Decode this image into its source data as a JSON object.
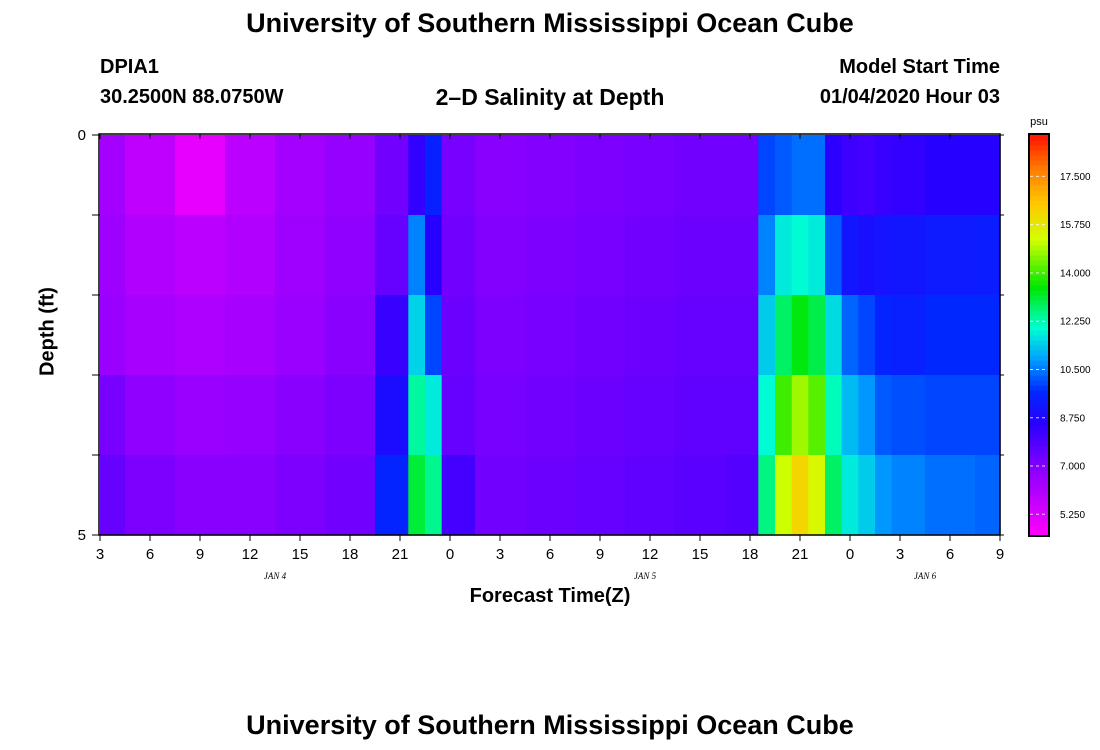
{
  "page": {
    "title_top": "University of Southern Mississippi Ocean Cube",
    "title_bottom": "University of Southern Mississippi Ocean Cube",
    "station_id": "DPIA1",
    "station_coords": "30.2500N 88.0750W",
    "plot_title": "2–D Salinity at Depth",
    "model_start_label": "Model Start Time",
    "model_start_value": "01/04/2020 Hour 03"
  },
  "chart_data": {
    "type": "heatmap",
    "title": "2–D Salinity at Depth",
    "xlabel": "Forecast Time(Z)",
    "ylabel": "Depth (ft)",
    "x_tick_labels": [
      "3",
      "6",
      "9",
      "12",
      "15",
      "18",
      "21",
      "0",
      "3",
      "6",
      "9",
      "12",
      "15",
      "18",
      "21",
      "0",
      "3",
      "6",
      "9"
    ],
    "date_labels": [
      {
        "text": "JAN 4",
        "tick_index": 3.5
      },
      {
        "text": "JAN 5",
        "tick_index": 10.9
      },
      {
        "text": "JAN 6",
        "tick_index": 16.5
      }
    ],
    "y_tick_labels": [
      "0",
      "5"
    ],
    "ylim": [
      0,
      5
    ],
    "depths_ft": [
      0.5,
      1.5,
      2.5,
      3.5,
      4.5
    ],
    "hours_from_start": [
      0,
      3,
      6,
      9,
      12,
      15,
      18,
      19,
      20,
      21,
      24,
      27,
      30,
      33,
      36,
      39,
      40,
      41,
      42,
      43,
      44,
      45,
      46,
      47,
      48,
      51,
      54
    ],
    "salinity_psu": [
      [
        6.4,
        5.8,
        5.0,
        5.9,
        6.4,
        6.7,
        7.3,
        8.4,
        9.5,
        7.2,
        6.9,
        7.0,
        7.1,
        7.2,
        7.3,
        7.3,
        10.0,
        10.2,
        10.4,
        10.4,
        8.5,
        8.2,
        8.1,
        8.3,
        8.4,
        8.6,
        8.6
      ],
      [
        6.5,
        6.1,
        5.9,
        6.1,
        6.5,
        6.8,
        7.5,
        10.6,
        8.6,
        7.3,
        7.0,
        7.1,
        7.2,
        7.3,
        7.4,
        7.4,
        10.6,
        11.8,
        12.0,
        11.8,
        10.2,
        9.2,
        9.0,
        9.1,
        9.2,
        9.3,
        9.4
      ],
      [
        6.6,
        6.3,
        6.2,
        6.3,
        6.6,
        6.9,
        8.3,
        11.5,
        10.0,
        7.4,
        7.1,
        7.2,
        7.3,
        7.4,
        7.5,
        7.5,
        11.4,
        12.8,
        13.4,
        13.0,
        11.6,
        10.3,
        10.0,
        9.6,
        9.5,
        9.7,
        9.7
      ],
      [
        7.2,
        6.8,
        6.6,
        6.7,
        6.9,
        7.1,
        8.9,
        12.4,
        11.8,
        7.5,
        7.2,
        7.3,
        7.4,
        7.5,
        7.6,
        7.6,
        12.0,
        14.0,
        14.8,
        14.2,
        12.2,
        11.2,
        10.8,
        10.2,
        10.1,
        10.0,
        10.0
      ],
      [
        7.5,
        7.1,
        6.9,
        6.9,
        7.1,
        7.3,
        9.6,
        13.1,
        12.5,
        8.1,
        7.3,
        7.4,
        7.5,
        7.6,
        7.7,
        7.8,
        12.6,
        15.2,
        16.2,
        15.4,
        12.8,
        11.8,
        11.4,
        10.8,
        10.6,
        10.4,
        10.3
      ]
    ],
    "colorbar": {
      "unit": "psu",
      "min": 4.5,
      "max": 19.0,
      "tick_labels": [
        "5.250",
        "7.000",
        "8.750",
        "10.500",
        "12.250",
        "14.000",
        "15.750",
        "17.500"
      ]
    }
  }
}
